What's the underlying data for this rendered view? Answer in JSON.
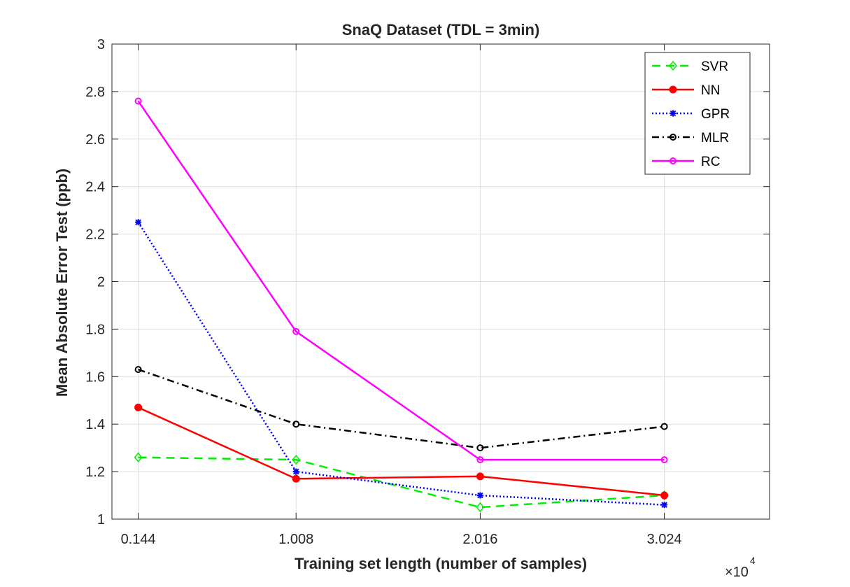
{
  "chart_data": {
    "type": "line",
    "title": "SnaQ Dataset  (TDL = 3min)",
    "xlabel": "Training set length (number of samples)",
    "ylabel": "Mean Absolute Error Test (ppb)",
    "x_exponent_base": "×10",
    "x_exponent_power": "4",
    "x": [
      0.144,
      1.008,
      2.016,
      3.024
    ],
    "xticks": [
      "0.144",
      "1.008",
      "2.016",
      "3.024"
    ],
    "xlim": [
      0.0,
      3.6
    ],
    "ylim": [
      1,
      3
    ],
    "yticks": [
      "1",
      "1.2",
      "1.4",
      "1.6",
      "1.8",
      "2",
      "2.2",
      "2.4",
      "2.6",
      "2.8",
      "3"
    ],
    "grid": true,
    "legend_location": "top-right",
    "series": [
      {
        "name": "SVR",
        "values": [
          1.26,
          1.25,
          1.05,
          1.1
        ],
        "color": "#00ee00",
        "dash": "dashed",
        "marker": "diamond"
      },
      {
        "name": "NN",
        "values": [
          1.47,
          1.17,
          1.18,
          1.1
        ],
        "color": "#ff0000",
        "dash": "solid",
        "marker": "circle-filled"
      },
      {
        "name": "GPR",
        "values": [
          2.25,
          1.2,
          1.1,
          1.06
        ],
        "color": "#0000ff",
        "dash": "dotted",
        "marker": "star"
      },
      {
        "name": "MLR",
        "values": [
          1.63,
          1.4,
          1.3,
          1.39
        ],
        "color": "#000000",
        "dash": "dashdot",
        "marker": "circle-open"
      },
      {
        "name": "RC",
        "values": [
          2.76,
          1.79,
          1.25,
          1.25
        ],
        "color": "#ff00ff",
        "dash": "solid",
        "marker": "circle-open"
      }
    ]
  }
}
